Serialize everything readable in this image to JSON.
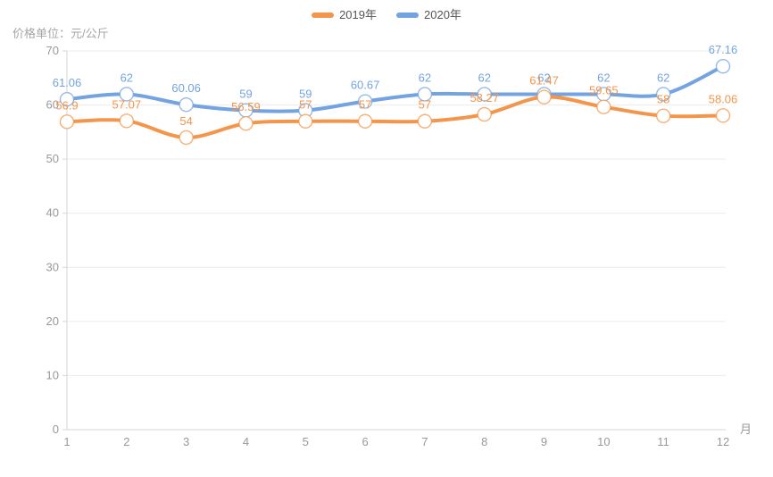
{
  "legend": {
    "items": [
      {
        "label": "2019年"
      },
      {
        "label": "2020年"
      }
    ]
  },
  "chart_data": {
    "type": "line",
    "title": "价格单位：元/公斤",
    "xlabel": "月",
    "x": [
      1,
      2,
      3,
      4,
      5,
      6,
      7,
      8,
      9,
      10,
      11,
      12
    ],
    "ylim": [
      0,
      70
    ],
    "yticks": [
      0,
      10,
      20,
      30,
      40,
      50,
      60,
      70
    ],
    "grid": true,
    "smooth": true,
    "legend_position": "top-center",
    "series": [
      {
        "name": "2019年",
        "color": "#F3954A",
        "values": [
          56.9,
          57.07,
          54,
          56.59,
          57,
          57,
          57,
          58.27,
          61.47,
          59.65,
          58,
          58.06
        ]
      },
      {
        "name": "2020年",
        "color": "#74A3E2",
        "values": [
          61.06,
          62,
          60.06,
          59,
          59,
          60.67,
          62,
          62,
          62,
          62,
          62,
          67.16
        ]
      }
    ],
    "colors": {
      "grid_line": "#ececec",
      "axis_line": "#d6d6d6",
      "tick_text": "#999999",
      "marker_fill": "#ffffff"
    }
  }
}
